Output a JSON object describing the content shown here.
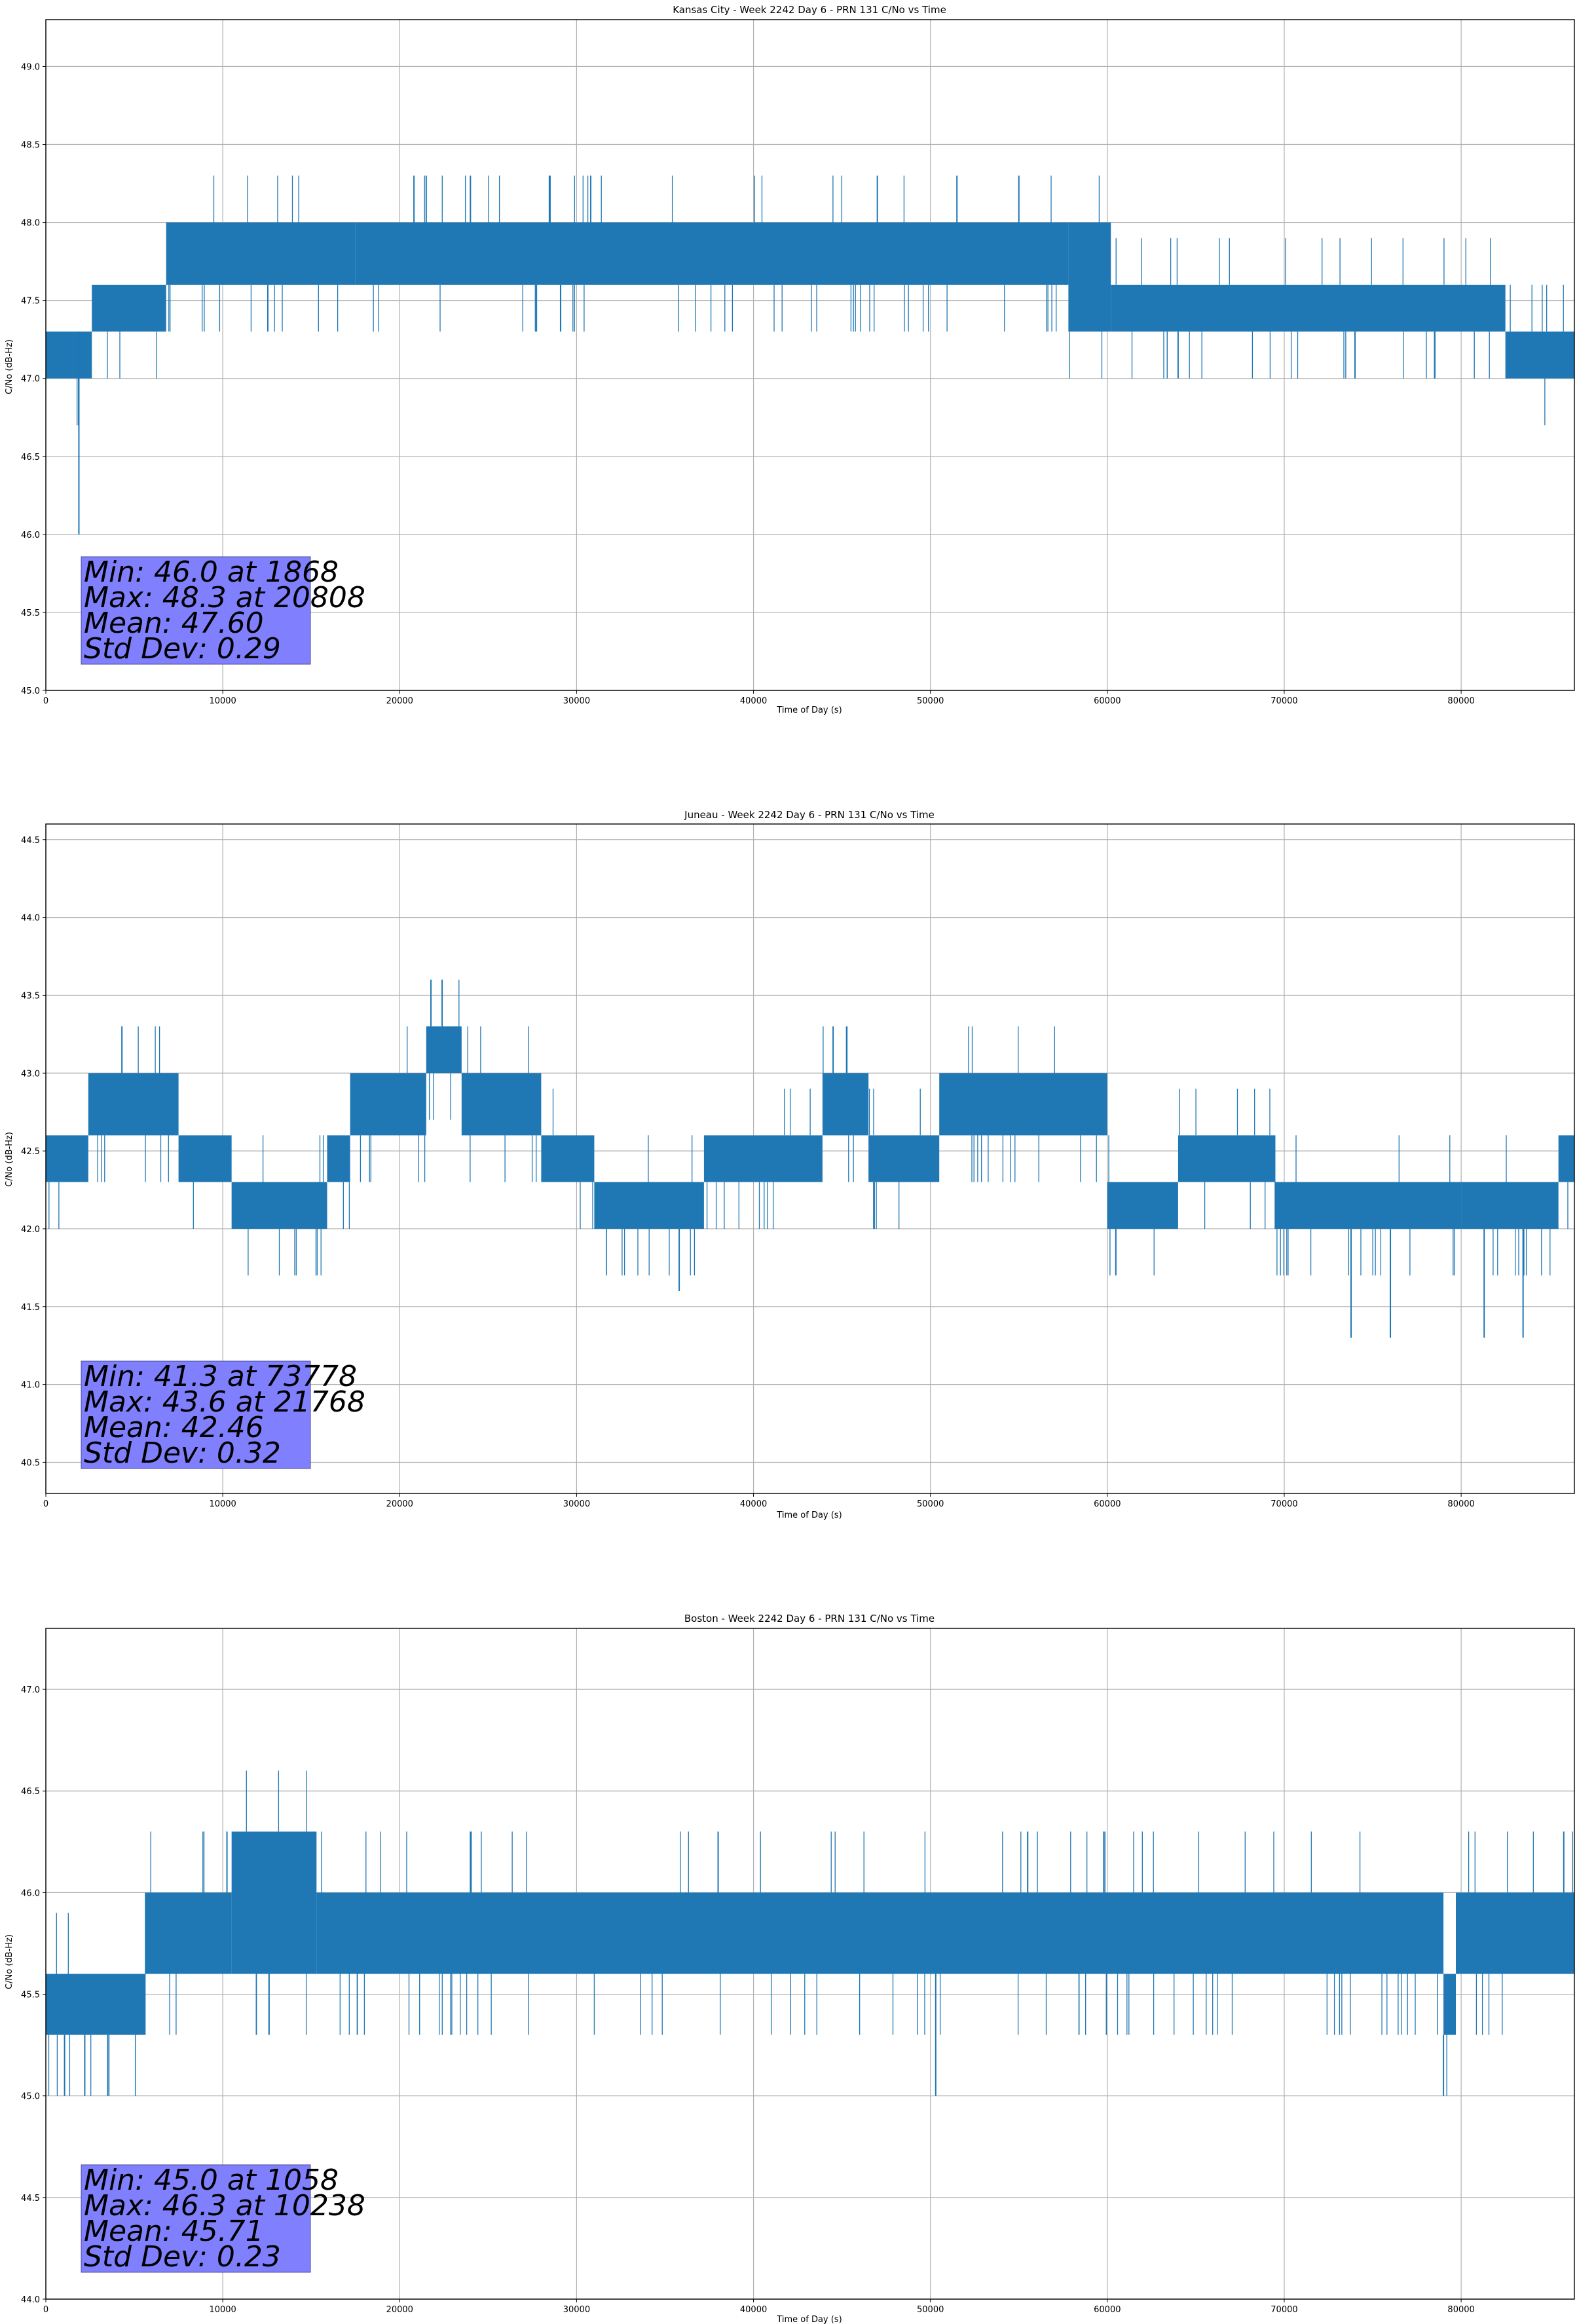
{
  "chart_data": [
    {
      "type": "line",
      "title": "Kansas City - Week 2242 Day 6 - PRN 131 C/No vs Time",
      "xlabel": "Time of Day (s)",
      "ylabel": "C/No (dB-Hz)",
      "xlim": [
        0,
        86400
      ],
      "ylim": [
        45.0,
        49.3
      ],
      "xticks": [
        0,
        10000,
        20000,
        30000,
        40000,
        50000,
        60000,
        70000,
        80000
      ],
      "yticks": [
        45.0,
        45.5,
        46.0,
        46.5,
        47.0,
        47.5,
        48.0,
        48.5,
        49.0
      ],
      "grid": true,
      "color": "#1f77b4",
      "series": {
        "name": "C/No",
        "bands": [
          {
            "x0": 0,
            "x1": 2600,
            "low": 47.0,
            "high": 47.3
          },
          {
            "x0": 2600,
            "x1": 6800,
            "low": 47.3,
            "high": 47.6
          },
          {
            "x0": 6800,
            "x1": 17500,
            "low": 47.6,
            "high": 48.0
          },
          {
            "x0": 17500,
            "x1": 57800,
            "low": 47.6,
            "high": 48.0
          },
          {
            "x0": 57800,
            "x1": 60200,
            "low": 47.3,
            "high": 48.0
          },
          {
            "x0": 60200,
            "x1": 82500,
            "low": 47.3,
            "high": 47.6
          },
          {
            "x0": 82500,
            "x1": 86400,
            "low": 47.0,
            "high": 47.3
          }
        ],
        "spikes": [
          {
            "x": 1868,
            "y0": 46.0,
            "y1": 47.3
          },
          {
            "x": 20808,
            "y0": 48.0,
            "y1": 48.3
          },
          {
            "x": 21500,
            "y0": 48.0,
            "y1": 48.3
          },
          {
            "x": 24000,
            "y0": 48.0,
            "y1": 48.3
          },
          {
            "x": 28500,
            "y0": 48.0,
            "y1": 48.3
          },
          {
            "x": 30800,
            "y0": 48.0,
            "y1": 48.3
          },
          {
            "x": 47000,
            "y0": 48.0,
            "y1": 48.3
          },
          {
            "x": 51500,
            "y0": 48.0,
            "y1": 48.3
          },
          {
            "x": 55000,
            "y0": 48.0,
            "y1": 48.3
          },
          {
            "x": 64000,
            "y0": 47.0,
            "y1": 47.3
          },
          {
            "x": 74000,
            "y0": 47.0,
            "y1": 47.3
          }
        ]
      },
      "stats": {
        "min": "Min: 46.0 at 1868",
        "max": "Max: 48.3 at 20808",
        "mean": "Mean: 47.60",
        "std": "Std Dev: 0.29"
      }
    },
    {
      "type": "line",
      "title": "Juneau - Week 2242 Day 6 - PRN 131 C/No vs Time",
      "xlabel": "Time of Day (s)",
      "ylabel": "C/No (dB-Hz)",
      "xlim": [
        0,
        86400
      ],
      "ylim": [
        40.3,
        44.6
      ],
      "xticks": [
        0,
        10000,
        20000,
        30000,
        40000,
        50000,
        60000,
        70000,
        80000
      ],
      "yticks": [
        40.5,
        41.0,
        41.5,
        42.0,
        42.5,
        43.0,
        43.5,
        44.0,
        44.5
      ],
      "grid": true,
      "color": "#1f77b4",
      "series": {
        "name": "C/No",
        "bands": [
          {
            "x0": 0,
            "x1": 2400,
            "low": 42.3,
            "high": 42.6
          },
          {
            "x0": 2400,
            "x1": 7500,
            "low": 42.6,
            "high": 43.0
          },
          {
            "x0": 7500,
            "x1": 10500,
            "low": 42.3,
            "high": 42.6
          },
          {
            "x0": 10500,
            "x1": 15900,
            "low": 42.0,
            "high": 42.3
          },
          {
            "x0": 15900,
            "x1": 17200,
            "low": 42.3,
            "high": 42.6
          },
          {
            "x0": 17200,
            "x1": 21500,
            "low": 42.6,
            "high": 43.0
          },
          {
            "x0": 21500,
            "x1": 23500,
            "low": 43.0,
            "high": 43.3
          },
          {
            "x0": 23500,
            "x1": 28000,
            "low": 42.6,
            "high": 43.0
          },
          {
            "x0": 28000,
            "x1": 31000,
            "low": 42.3,
            "high": 42.6
          },
          {
            "x0": 31000,
            "x1": 37200,
            "low": 42.0,
            "high": 42.3
          },
          {
            "x0": 37200,
            "x1": 43900,
            "low": 42.3,
            "high": 42.6
          },
          {
            "x0": 43900,
            "x1": 46500,
            "low": 42.6,
            "high": 43.0
          },
          {
            "x0": 46500,
            "x1": 50500,
            "low": 42.3,
            "high": 42.6
          },
          {
            "x0": 50500,
            "x1": 60000,
            "low": 42.6,
            "high": 43.0
          },
          {
            "x0": 60000,
            "x1": 64000,
            "low": 42.0,
            "high": 42.3
          },
          {
            "x0": 64000,
            "x1": 69500,
            "low": 42.3,
            "high": 42.6
          },
          {
            "x0": 69500,
            "x1": 80000,
            "low": 42.0,
            "high": 42.3
          },
          {
            "x0": 80000,
            "x1": 85500,
            "low": 42.0,
            "high": 42.3
          },
          {
            "x0": 85500,
            "x1": 86400,
            "low": 42.3,
            "high": 42.6
          }
        ],
        "spikes": [
          {
            "x": 4300,
            "y0": 43.0,
            "y1": 43.3
          },
          {
            "x": 21768,
            "y0": 43.3,
            "y1": 43.6
          },
          {
            "x": 22400,
            "y0": 43.3,
            "y1": 43.6
          },
          {
            "x": 35800,
            "y0": 41.6,
            "y1": 42.0
          },
          {
            "x": 44500,
            "y0": 43.0,
            "y1": 43.3
          },
          {
            "x": 73778,
            "y0": 41.3,
            "y1": 42.0
          },
          {
            "x": 76000,
            "y0": 41.3,
            "y1": 42.0
          },
          {
            "x": 81300,
            "y0": 41.3,
            "y1": 42.0
          },
          {
            "x": 83500,
            "y0": 41.3,
            "y1": 42.0
          }
        ]
      },
      "stats": {
        "min": "Min: 41.3 at 73778",
        "max": "Max: 43.6 at 21768",
        "mean": "Mean: 42.46",
        "std": "Std Dev: 0.32"
      }
    },
    {
      "type": "line",
      "title": "Boston - Week 2242 Day 6 - PRN 131 C/No vs Time",
      "xlabel": "Time of Day (s)",
      "ylabel": "C/No (dB-Hz)",
      "xlim": [
        0,
        86400
      ],
      "ylim": [
        44.0,
        47.3
      ],
      "xticks": [
        0,
        10000,
        20000,
        30000,
        40000,
        50000,
        60000,
        70000,
        80000
      ],
      "yticks": [
        44.0,
        44.5,
        45.0,
        45.5,
        46.0,
        46.5,
        47.0
      ],
      "grid": true,
      "color": "#1f77b4",
      "series": {
        "name": "C/No",
        "bands": [
          {
            "x0": 0,
            "x1": 5600,
            "low": 45.3,
            "high": 45.6
          },
          {
            "x0": 5600,
            "x1": 10500,
            "low": 45.6,
            "high": 46.0
          },
          {
            "x0": 10500,
            "x1": 15300,
            "low": 45.6,
            "high": 46.3
          },
          {
            "x0": 15300,
            "x1": 79000,
            "low": 45.6,
            "high": 46.0
          },
          {
            "x0": 79000,
            "x1": 79700,
            "low": 45.3,
            "high": 45.6
          },
          {
            "x0": 79700,
            "x1": 86400,
            "low": 45.6,
            "high": 46.0
          }
        ],
        "spikes": [
          {
            "x": 1058,
            "y0": 45.0,
            "y1": 45.3
          },
          {
            "x": 2200,
            "y0": 45.0,
            "y1": 45.3
          },
          {
            "x": 3500,
            "y0": 45.0,
            "y1": 45.3
          },
          {
            "x": 10238,
            "y0": 46.0,
            "y1": 46.3
          },
          {
            "x": 24000,
            "y0": 46.0,
            "y1": 46.3
          },
          {
            "x": 38000,
            "y0": 46.0,
            "y1": 46.3
          },
          {
            "x": 50300,
            "y0": 45.0,
            "y1": 45.6
          },
          {
            "x": 59800,
            "y0": 46.0,
            "y1": 46.3
          },
          {
            "x": 79000,
            "y0": 45.0,
            "y1": 45.3
          },
          {
            "x": 85800,
            "y0": 46.0,
            "y1": 46.3
          }
        ]
      },
      "stats": {
        "min": "Min: 45.0 at 1058",
        "max": "Max: 46.3 at 10238",
        "mean": "Mean: 45.71",
        "std": "Std Dev: 0.23"
      }
    }
  ]
}
